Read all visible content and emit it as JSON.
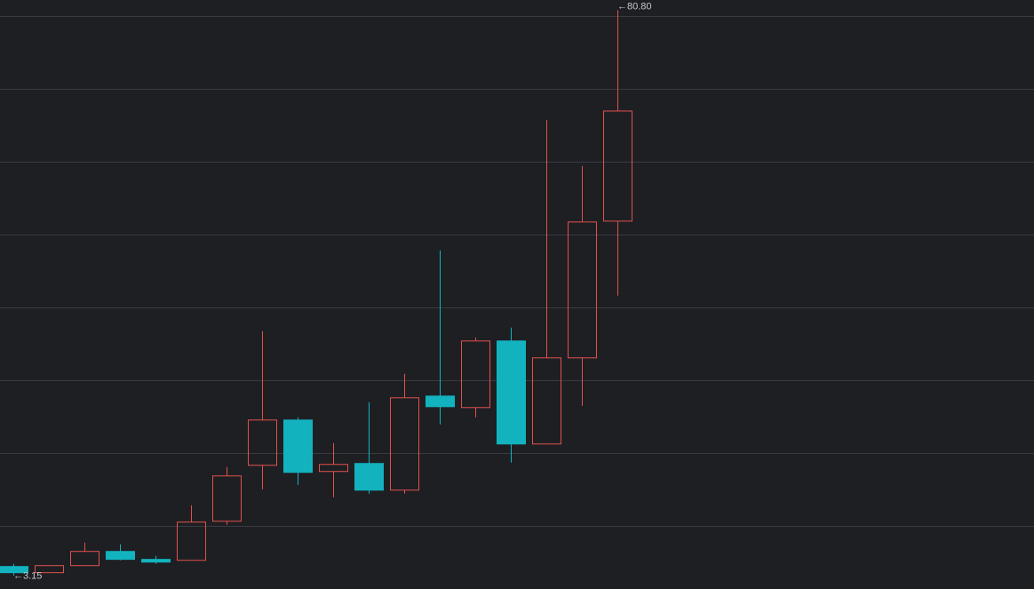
{
  "chart_data": {
    "type": "candlestick",
    "open": [
      4.39,
      3.54,
      4.51,
      6.46,
      5.37,
      5.24,
      10.61,
      18.29,
      24.51,
      17.44,
      18.54,
      14.88,
      27.8,
      26.22,
      35.37,
      21.22,
      33.05,
      51.83
    ],
    "high": [
      4.76,
      4.51,
      7.68,
      7.44,
      5.85,
      12.8,
      18.05,
      36.71,
      24.88,
      21.34,
      26.95,
      30.85,
      47.8,
      35.85,
      37.2,
      65.73,
      59.39,
      80.8
    ],
    "low": [
      3.15,
      3.54,
      4.51,
      5.24,
      4.76,
      5.24,
      10.12,
      15.0,
      15.61,
      13.9,
      14.39,
      14.39,
      23.9,
      24.88,
      18.66,
      21.22,
      26.46,
      41.59
    ],
    "close": [
      3.54,
      4.51,
      6.46,
      5.37,
      5.0,
      10.49,
      16.83,
      24.51,
      17.32,
      18.41,
      14.88,
      27.56,
      26.34,
      35.37,
      21.22,
      33.05,
      51.71,
      66.95
    ],
    "up_color": "#e0514c",
    "down_color": "#12b3bf",
    "ylim": [
      1.3,
      82.2
    ],
    "yticks": [
      10,
      20,
      30,
      40,
      50,
      60,
      70,
      80
    ],
    "grid": true,
    "tick_labels": false,
    "annotations": {
      "max": "←80.80",
      "min": "←3.15"
    }
  }
}
